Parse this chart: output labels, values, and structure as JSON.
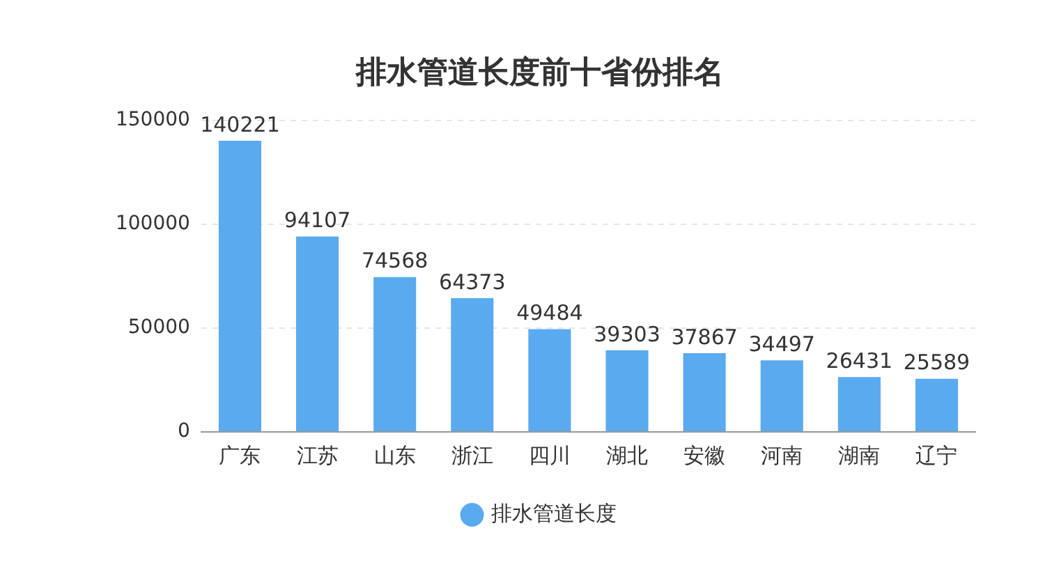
{
  "chart_data": {
    "type": "bar",
    "title": "排水管道长度前十省份排名",
    "categories": [
      "广东",
      "江苏",
      "山东",
      "浙江",
      "四川",
      "湖北",
      "安徽",
      "河南",
      "湖南",
      "辽宁"
    ],
    "series": [
      {
        "name": "排水管道长度",
        "color": "#5aaaf0",
        "values": [
          140221,
          94107,
          74568,
          64373,
          49484,
          39303,
          37867,
          34497,
          26431,
          25589
        ]
      }
    ],
    "ylim": [
      0,
      150000
    ],
    "yticks": [
      0,
      50000,
      100000,
      150000
    ],
    "grid": "y",
    "legend": "bottom",
    "marker": "circle",
    "data_labels": true
  }
}
